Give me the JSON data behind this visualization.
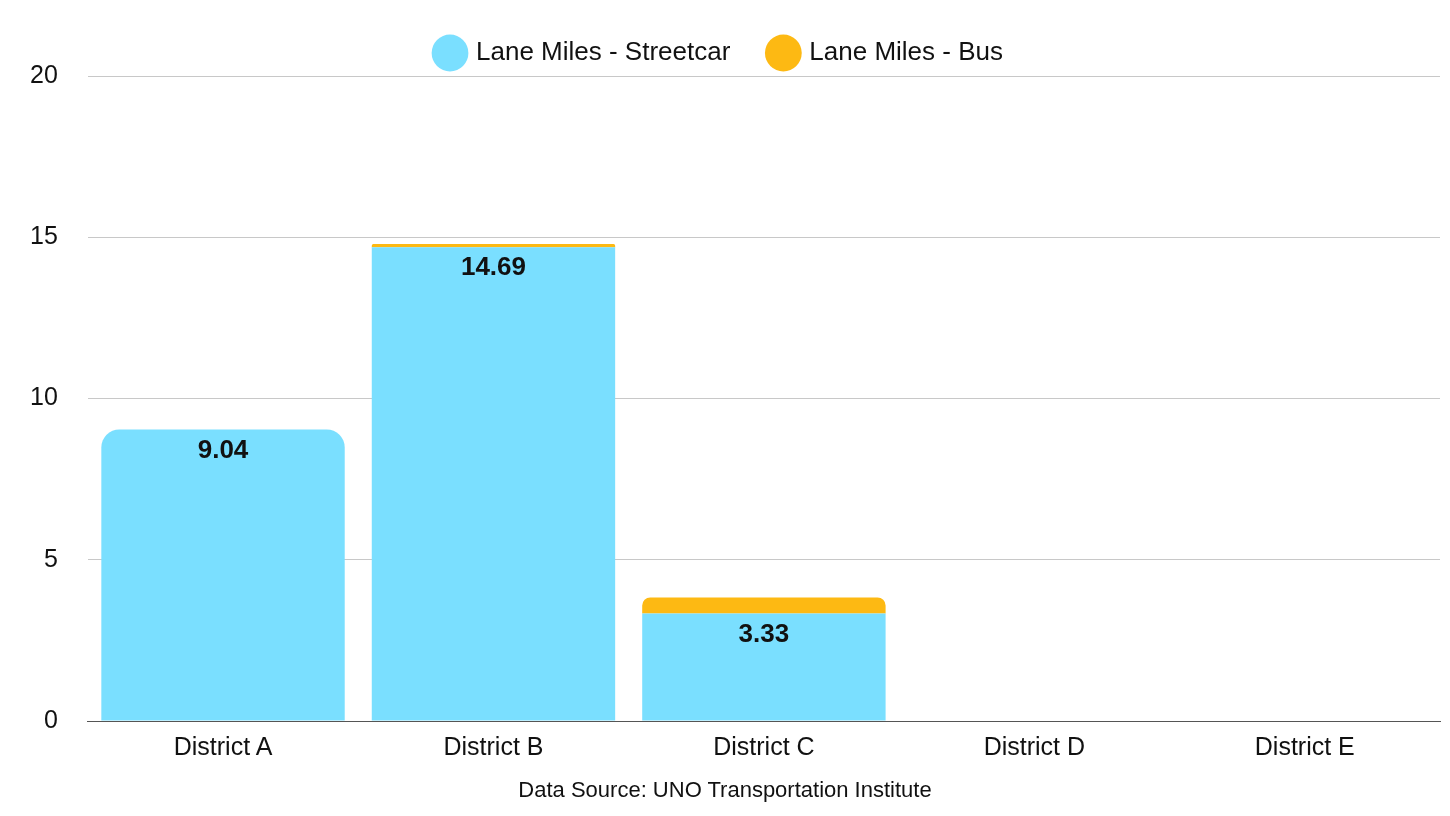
{
  "chart_data": {
    "type": "bar",
    "stacked": true,
    "categories": [
      "District A",
      "District B",
      "District C",
      "District D",
      "District E"
    ],
    "series": [
      {
        "name": "Lane Miles - Streetcar",
        "color": "#7adfff",
        "values": [
          9.04,
          14.69,
          3.33,
          null,
          null
        ],
        "value_labels": [
          "9.04",
          "14.69",
          "3.33",
          null,
          null
        ]
      },
      {
        "name": "Lane Miles - Bus",
        "color": "#fdb913",
        "values": [
          null,
          0.1,
          0.5,
          null,
          null
        ]
      }
    ],
    "ylim": [
      0,
      20
    ],
    "yticks": [
      0,
      5,
      10,
      15,
      20
    ],
    "grid": "y",
    "legend": "top",
    "annotations": [
      "Data Source: UNO Transportation Institute"
    ]
  }
}
